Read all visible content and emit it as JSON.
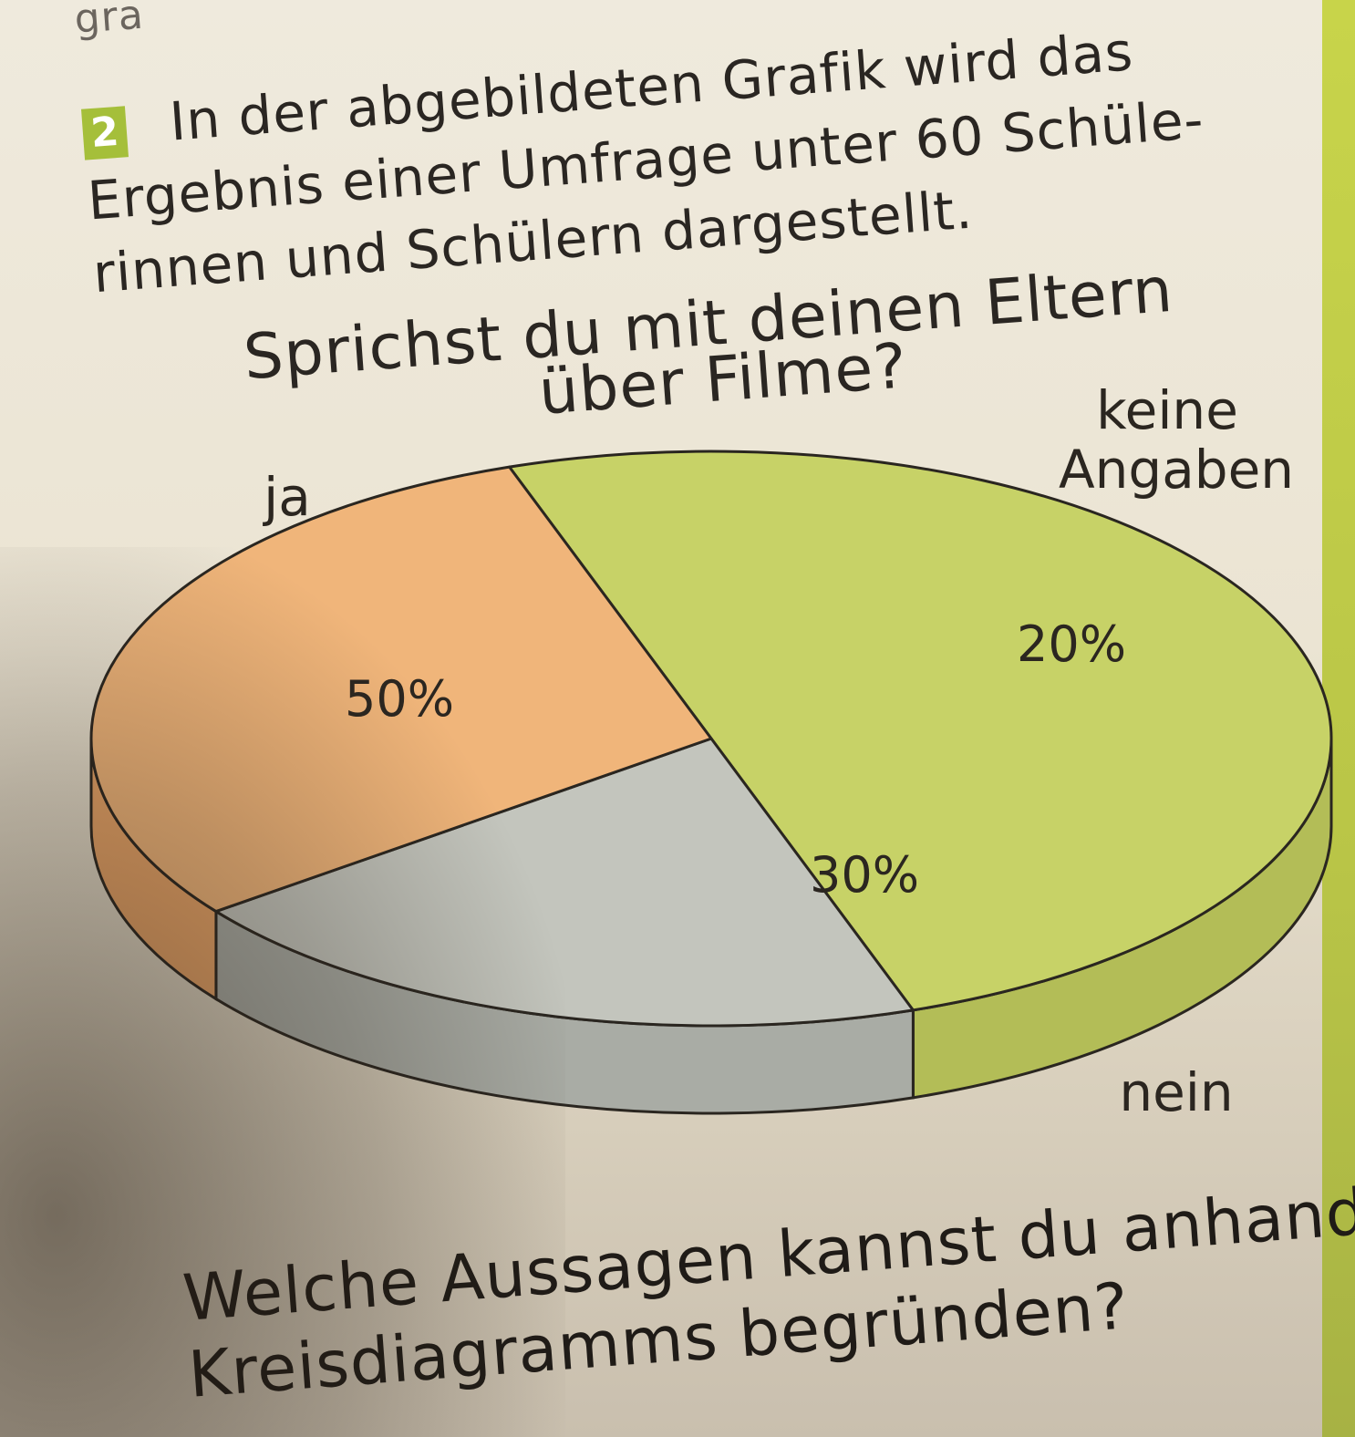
{
  "page": {
    "fragment": "gra",
    "task_number": "2",
    "intro_lines": [
      "In der abgebildeten Grafik wird das",
      "Ergebnis einer Umfrage unter 60 Schüle-",
      "rinnen und Schülern dargestellt."
    ],
    "question_lines": [
      "Welche Aussagen kannst du anhand de",
      "Kreisdiagramms begründen?"
    ]
  },
  "chart_data": {
    "type": "pie",
    "title_lines": [
      "Sprichst du mit deinen Eltern",
      "über Filme?"
    ],
    "slices": [
      {
        "label": "ja",
        "value": 50,
        "value_label": "50%",
        "color": "#c7d267"
      },
      {
        "label": "keine Angaben",
        "value": 20,
        "value_label": "20%",
        "color": "#c3c5bd"
      },
      {
        "label": "nein",
        "value": 30,
        "value_label": "30%",
        "color": "#f0b57a"
      }
    ],
    "side_colors": {
      "ja": "#b3bd57",
      "nein": "#e9a568",
      "keine Angaben": "#a9aca5"
    },
    "outline_color": "#2a2620",
    "style": "3d"
  }
}
